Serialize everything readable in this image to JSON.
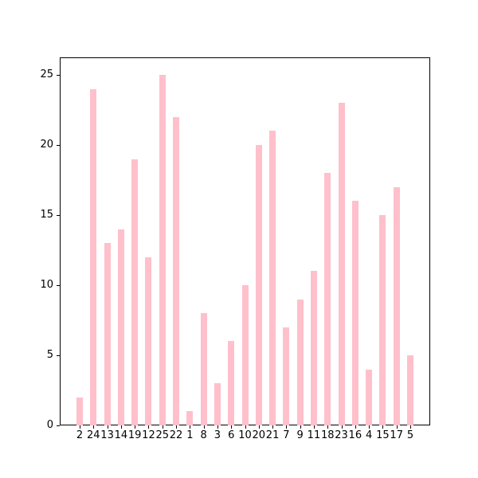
{
  "chart_data": {
    "type": "bar",
    "title": "",
    "xlabel": "",
    "ylabel": "",
    "categories": [
      "2",
      "24",
      "13",
      "14",
      "19",
      "12",
      "25",
      "22",
      "1",
      "8",
      "3",
      "6",
      "10",
      "20",
      "21",
      "7",
      "9",
      "11",
      "18",
      "23",
      "16",
      "4",
      "15",
      "17",
      "5"
    ],
    "values": [
      2,
      24,
      13,
      14,
      19,
      12,
      25,
      22,
      1,
      8,
      3,
      6,
      10,
      20,
      21,
      7,
      9,
      11,
      18,
      23,
      16,
      4,
      15,
      17,
      5
    ],
    "yticks": [
      0,
      5,
      10,
      15,
      20,
      25
    ],
    "ylim": [
      0,
      26.25
    ],
    "grid": false,
    "legend": null,
    "colors": {
      "bar": "#ffc0cb",
      "axis": "#000000",
      "tick_label": "#000000",
      "background": "#ffffff"
    }
  }
}
